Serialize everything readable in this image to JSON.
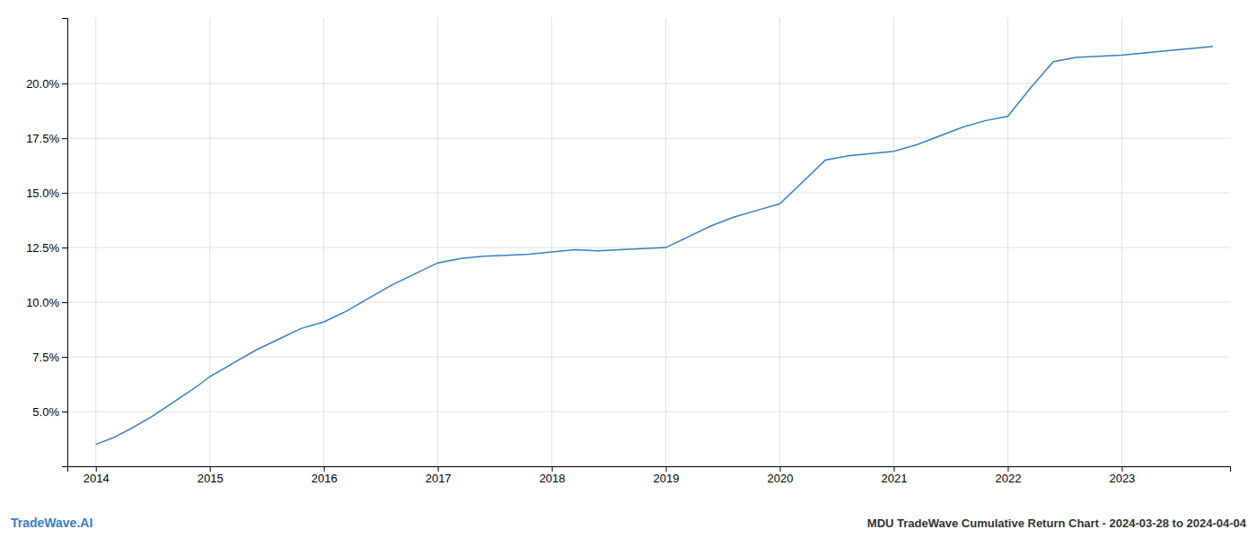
{
  "chart_data": {
    "type": "line",
    "title": "MDU TradeWave Cumulative Return Chart - 2024-03-28 to 2024-04-04",
    "annotations": [
      "TradeWave.AI"
    ],
    "color": "#3a7ebf",
    "x": [
      2014.0,
      2014.15,
      2014.3,
      2014.5,
      2014.7,
      2014.9,
      2015.0,
      2015.2,
      2015.4,
      2015.6,
      2015.8,
      2016.0,
      2016.2,
      2016.4,
      2016.6,
      2016.8,
      2017.0,
      2017.2,
      2017.4,
      2017.6,
      2017.8,
      2018.0,
      2018.2,
      2018.4,
      2018.6,
      2018.8,
      2019.0,
      2019.2,
      2019.4,
      2019.6,
      2019.8,
      2020.0,
      2020.2,
      2020.4,
      2020.6,
      2020.8,
      2021.0,
      2021.2,
      2021.4,
      2021.6,
      2021.8,
      2022.0,
      2022.2,
      2022.4,
      2022.6,
      2022.8,
      2023.0,
      2023.2,
      2023.4,
      2023.6,
      2023.8
    ],
    "values": [
      3.5,
      3.8,
      4.2,
      4.8,
      5.5,
      6.2,
      6.6,
      7.2,
      7.8,
      8.3,
      8.8,
      9.1,
      9.6,
      10.2,
      10.8,
      11.3,
      11.8,
      12.0,
      12.1,
      12.15,
      12.2,
      12.3,
      12.4,
      12.35,
      12.4,
      12.45,
      12.5,
      13.0,
      13.5,
      13.9,
      14.2,
      14.5,
      15.5,
      16.5,
      16.7,
      16.8,
      16.9,
      17.2,
      17.6,
      18.0,
      18.3,
      18.5,
      19.8,
      21.0,
      21.2,
      21.25,
      21.3,
      21.4,
      21.5,
      21.6,
      21.7
    ],
    "xlim": [
      2013.75,
      2023.95
    ],
    "ylim": [
      2.5,
      23.0
    ],
    "xticks": [
      2014,
      2015,
      2016,
      2017,
      2018,
      2019,
      2020,
      2021,
      2022,
      2023
    ],
    "yticks": [
      {
        "value": 5.0,
        "label": "5.0%"
      },
      {
        "value": 7.5,
        "label": "7.5%"
      },
      {
        "value": 10.0,
        "label": "10.0%"
      },
      {
        "value": 12.5,
        "label": "12.5%"
      },
      {
        "value": 15.0,
        "label": "15.0%"
      },
      {
        "value": 17.5,
        "label": "17.5%"
      },
      {
        "value": 20.0,
        "label": "20.0%"
      }
    ],
    "grid": true
  }
}
